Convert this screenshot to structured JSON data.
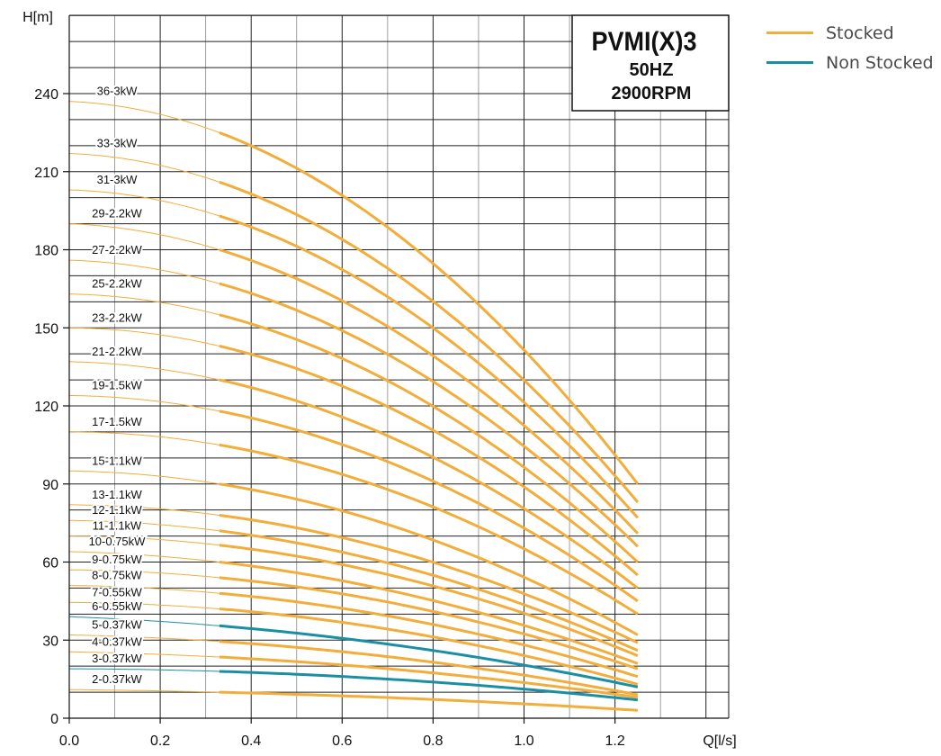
{
  "chart_data": {
    "type": "line",
    "title": "PVMI(X)3",
    "subtitle": [
      "50HZ",
      "2900RPM"
    ],
    "xlabel": "Q[l/s]",
    "ylabel": "H[m]",
    "xlim": [
      0,
      1.45
    ],
    "ylim": [
      0,
      240
    ],
    "x_ticks": [
      "0.0",
      "0.2",
      "0.4",
      "0.6",
      "0.8",
      "1.0",
      "1.2"
    ],
    "y_ticks": [
      "0",
      "30",
      "60",
      "90",
      "120",
      "150",
      "180",
      "210",
      "240"
    ],
    "grid": true,
    "legend_position": "top-right",
    "colors": {
      "Stocked": "#f2ad3a",
      "Non Stocked": "#1a8fa4"
    },
    "legend": [
      "Stocked",
      "Non Stocked"
    ],
    "operating_range": [
      0.33,
      1.25
    ],
    "series": [
      {
        "label": "36-3kW",
        "status": "Stocked",
        "x": [
          0,
          0.33,
          1.25
        ],
        "y": [
          237,
          225,
          90
        ]
      },
      {
        "label": "33-3kW",
        "status": "Stocked",
        "x": [
          0,
          0.33,
          1.25
        ],
        "y": [
          217,
          206,
          83
        ]
      },
      {
        "label": "31-3kW",
        "status": "Stocked",
        "x": [
          0,
          0.33,
          1.25
        ],
        "y": [
          203,
          193,
          77
        ]
      },
      {
        "label": "29-2.2kW",
        "status": "Stocked",
        "x": [
          0,
          0.33,
          1.25
        ],
        "y": [
          190,
          180,
          71
        ]
      },
      {
        "label": "27-2.2kW",
        "status": "Stocked",
        "x": [
          0,
          0.33,
          1.25
        ],
        "y": [
          176,
          167,
          66
        ]
      },
      {
        "label": "25-2.2kW",
        "status": "Stocked",
        "x": [
          0,
          0.33,
          1.25
        ],
        "y": [
          163,
          155,
          60
        ]
      },
      {
        "label": "23-2.2kW",
        "status": "Stocked",
        "x": [
          0,
          0.33,
          1.25
        ],
        "y": [
          150,
          143,
          55
        ]
      },
      {
        "label": "21-2.2kW",
        "status": "Stocked",
        "x": [
          0,
          0.33,
          1.25
        ],
        "y": [
          137,
          130,
          50
        ]
      },
      {
        "label": "19-1.5kW",
        "status": "Stocked",
        "x": [
          0,
          0.33,
          1.25
        ],
        "y": [
          124,
          118,
          45
        ]
      },
      {
        "label": "17-1.5kW",
        "status": "Stocked",
        "x": [
          0,
          0.33,
          1.25
        ],
        "y": [
          110,
          105,
          40
        ]
      },
      {
        "label": "15-1.1kW",
        "status": "Stocked",
        "x": [
          0,
          0.33,
          1.25
        ],
        "y": [
          95,
          90,
          32
        ]
      },
      {
        "label": "13-1.1kW",
        "status": "Stocked",
        "x": [
          0,
          0.33,
          1.25
        ],
        "y": [
          82,
          78,
          29
        ]
      },
      {
        "label": "12-1.1kW",
        "status": "Stocked",
        "x": [
          0,
          0.33,
          1.25
        ],
        "y": [
          76,
          72,
          26
        ]
      },
      {
        "label": "11-1.1kW",
        "status": "Stocked",
        "x": [
          0,
          0.33,
          1.25
        ],
        "y": [
          70,
          66.5,
          24
        ]
      },
      {
        "label": "10-0.75kW",
        "status": "Stocked",
        "x": [
          0,
          0.33,
          1.25
        ],
        "y": [
          64,
          60,
          21
        ]
      },
      {
        "label": "9-0.75kW",
        "status": "Stocked",
        "x": [
          0,
          0.33,
          1.25
        ],
        "y": [
          57,
          54,
          19
        ]
      },
      {
        "label": "8-0.75kW",
        "status": "Stocked",
        "x": [
          0,
          0.33,
          1.25
        ],
        "y": [
          51,
          48,
          16
        ]
      },
      {
        "label": "7-0.55kW",
        "status": "Stocked",
        "x": [
          0,
          0.33,
          1.25
        ],
        "y": [
          44.5,
          42,
          13
        ]
      },
      {
        "label": "6-0.55kW",
        "status": "Non Stocked",
        "x": [
          0,
          0.33,
          1.25
        ],
        "y": [
          39,
          35.5,
          12
        ]
      },
      {
        "label": "5-0.37kW",
        "status": "Stocked",
        "x": [
          0,
          0.33,
          1.25
        ],
        "y": [
          32,
          29.5,
          9
        ]
      },
      {
        "label": "4-0.37kW",
        "status": "Stocked",
        "x": [
          0,
          0.33,
          1.25
        ],
        "y": [
          25.5,
          23.5,
          8
        ]
      },
      {
        "label": "3-0.37kW",
        "status": "Non Stocked",
        "x": [
          0,
          0.33,
          1.25
        ],
        "y": [
          19,
          18,
          7
        ]
      },
      {
        "label": "2-0.37kW",
        "status": "Stocked",
        "x": [
          0,
          0.33,
          1.25
        ],
        "y": [
          11,
          10,
          3
        ]
      }
    ]
  }
}
